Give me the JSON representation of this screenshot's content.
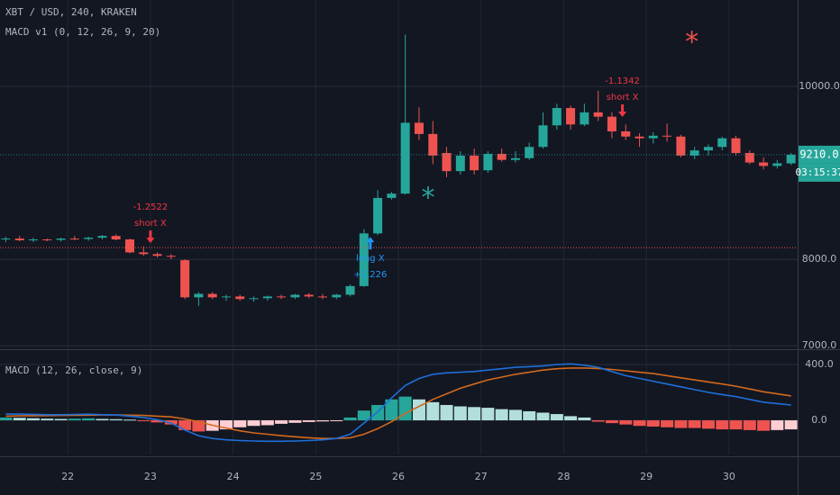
{
  "chart_data": [
    {
      "type": "candlestick",
      "title": "XBT / USD, 240, KRAKEN",
      "subtitle": "MACD v1 (0, 12, 26, 9, 20)",
      "x": [
        21.25,
        21.417,
        21.583,
        21.75,
        21.917,
        22.083,
        22.25,
        22.417,
        22.583,
        22.75,
        22.917,
        23.083,
        23.25,
        23.417,
        23.583,
        23.75,
        23.917,
        24.083,
        24.25,
        24.417,
        24.583,
        24.75,
        24.917,
        25.083,
        25.25,
        25.417,
        25.583,
        25.75,
        25.917,
        26.083,
        26.25,
        26.417,
        26.583,
        26.75,
        26.917,
        27.083,
        27.25,
        27.417,
        27.583,
        27.75,
        27.917,
        28.083,
        28.25,
        28.417,
        28.583,
        28.75,
        28.917,
        29.083,
        29.25,
        29.417,
        29.583,
        29.75,
        29.917,
        30.083,
        30.25,
        30.417,
        30.583,
        30.75
      ],
      "open": [
        8230,
        8240,
        8220,
        8230,
        8225,
        8240,
        8235,
        8250,
        8270,
        8230,
        8080,
        8060,
        8040,
        7990,
        7560,
        7600,
        7560,
        7570,
        7540,
        7550,
        7570,
        7560,
        7590,
        7570,
        7560,
        7590,
        7690,
        8300,
        8710,
        8760,
        9580,
        9450,
        9230,
        9020,
        9200,
        9030,
        9220,
        9150,
        9170,
        9300,
        9550,
        9750,
        9560,
        9700,
        9650,
        9480,
        9420,
        9400,
        9430,
        9420,
        9200,
        9260,
        9300,
        9400,
        9230,
        9120,
        9080,
        9110
      ],
      "high": [
        8260,
        8270,
        8250,
        8240,
        8250,
        8270,
        8260,
        8280,
        8290,
        8240,
        8150,
        8080,
        8060,
        8000,
        7620,
        7620,
        7590,
        7590,
        7570,
        7580,
        7590,
        7600,
        7610,
        7600,
        7600,
        7710,
        8350,
        8800,
        8780,
        10600,
        9760,
        9600,
        9300,
        9250,
        9280,
        9250,
        9280,
        9250,
        9350,
        9700,
        9800,
        9780,
        9800,
        9950,
        9700,
        9560,
        9460,
        9470,
        9570,
        9440,
        9300,
        9330,
        9420,
        9430,
        9260,
        9180,
        9150,
        9230
      ],
      "low": [
        8200,
        8210,
        8200,
        8210,
        8205,
        8220,
        8215,
        8230,
        8220,
        8070,
        8040,
        8020,
        8000,
        7540,
        7460,
        7540,
        7520,
        7520,
        7510,
        7520,
        7540,
        7540,
        7550,
        7540,
        7540,
        7570,
        7680,
        8280,
        8690,
        8750,
        9380,
        9100,
        8950,
        8980,
        8980,
        9000,
        9130,
        9120,
        9150,
        9280,
        9500,
        9500,
        9540,
        9600,
        9400,
        9380,
        9300,
        9340,
        9360,
        9180,
        9160,
        9200,
        9260,
        9200,
        9100,
        9040,
        9050,
        9090
      ],
      "close": [
        8240,
        8220,
        8230,
        8225,
        8240,
        8235,
        8250,
        8270,
        8230,
        8080,
        8060,
        8040,
        8030,
        7560,
        7600,
        7560,
        7570,
        7540,
        7550,
        7570,
        7560,
        7590,
        7570,
        7560,
        7590,
        7690,
        8300,
        8710,
        8760,
        9580,
        9450,
        9200,
        9020,
        9200,
        9030,
        9220,
        9150,
        9170,
        9300,
        9550,
        9750,
        9560,
        9700,
        9650,
        9480,
        9420,
        9400,
        9430,
        9420,
        9200,
        9260,
        9300,
        9400,
        9230,
        9120,
        9080,
        9110,
        9210
      ],
      "up_color": "#26a69a",
      "down_color": "#ef5350",
      "xlim": [
        21.18,
        30.83
      ],
      "xticks": [
        22,
        23,
        24,
        25,
        26,
        27,
        28,
        29,
        30
      ],
      "ylim": [
        6960,
        11000
      ],
      "yticks": [
        {
          "value": 10000,
          "label": "10000.0"
        },
        {
          "value": 8000,
          "label": "8000.0"
        },
        {
          "value": 7000,
          "label": "7000.0"
        }
      ],
      "grid": true,
      "last_price": {
        "value": 9210,
        "label": "9210.0"
      },
      "countdown": "03:15:37",
      "hline": {
        "value": 8135,
        "color": "#ef5350"
      },
      "annotations": [
        {
          "x": 23.0,
          "price": 8187,
          "direction": "down",
          "color": "#f23645",
          "lines": [
            "-1.2522",
            "short X"
          ]
        },
        {
          "x": 25.66,
          "price": 8260,
          "direction": "up",
          "color": "#2196f3",
          "lines": [
            "long X",
            "+1.226"
          ]
        },
        {
          "x": 28.71,
          "price": 9646,
          "direction": "down",
          "color": "#f23645",
          "lines": [
            "-1.1342",
            "short X"
          ]
        }
      ],
      "markers": [
        {
          "text": "*",
          "x": 26.36,
          "price": 8781,
          "color": "#26a69a"
        },
        {
          "text": "*",
          "x": 29.55,
          "price": 10583,
          "color": "#ef5350"
        }
      ]
    },
    {
      "type": "macd",
      "title": "MACD (12, 26, close, 9)",
      "x": [
        21.25,
        21.417,
        21.583,
        21.75,
        21.917,
        22.083,
        22.25,
        22.417,
        22.583,
        22.75,
        22.917,
        23.083,
        23.25,
        23.417,
        23.583,
        23.75,
        23.917,
        24.083,
        24.25,
        24.417,
        24.583,
        24.75,
        24.917,
        25.083,
        25.25,
        25.417,
        25.583,
        25.75,
        25.917,
        26.083,
        26.25,
        26.417,
        26.583,
        26.75,
        26.917,
        27.083,
        27.25,
        27.417,
        27.583,
        27.75,
        27.917,
        28.083,
        28.25,
        28.417,
        28.583,
        28.75,
        28.917,
        29.083,
        29.25,
        29.417,
        29.583,
        29.75,
        29.917,
        30.083,
        30.25,
        30.417,
        30.583,
        30.75
      ],
      "histogram": [
        20,
        18,
        15,
        12,
        10,
        12,
        14,
        10,
        8,
        5,
        -5,
        -15,
        -30,
        -70,
        -80,
        -75,
        -65,
        -50,
        -40,
        -35,
        -25,
        -18,
        -12,
        -8,
        -4,
        20,
        70,
        110,
        150,
        170,
        150,
        130,
        110,
        100,
        95,
        90,
        80,
        75,
        65,
        55,
        45,
        30,
        20,
        -10,
        -20,
        -30,
        -40,
        -45,
        -50,
        -55,
        -55,
        -60,
        -65,
        -65,
        -70,
        -75,
        -70,
        -65
      ],
      "histogram_colors": {
        "rising_above": "#26a69a",
        "falling_above": "#b2dfdb",
        "falling_below": "#ef5350",
        "rising_below": "#ffcdd2"
      },
      "macd": {
        "color": "#1e6fd9",
        "values": [
          45,
          45,
          43,
          40,
          40,
          42,
          44,
          40,
          38,
          30,
          20,
          5,
          -20,
          -70,
          -110,
          -130,
          -140,
          -145,
          -148,
          -150,
          -150,
          -148,
          -145,
          -140,
          -130,
          -100,
          -20,
          60,
          160,
          250,
          300,
          330,
          340,
          345,
          350,
          360,
          370,
          380,
          385,
          390,
          400,
          405,
          395,
          380,
          350,
          320,
          300,
          280,
          260,
          240,
          220,
          200,
          185,
          170,
          150,
          130,
          120,
          110
        ]
      },
      "signal": {
        "color": "#d2691e",
        "values": [
          30,
          32,
          33,
          34,
          35,
          36,
          37,
          38,
          38,
          37,
          35,
          30,
          25,
          10,
          -10,
          -35,
          -55,
          -75,
          -90,
          -100,
          -110,
          -118,
          -125,
          -130,
          -130,
          -125,
          -100,
          -60,
          -10,
          50,
          100,
          150,
          190,
          230,
          260,
          290,
          310,
          330,
          345,
          360,
          370,
          375,
          375,
          372,
          365,
          355,
          345,
          335,
          320,
          305,
          290,
          275,
          260,
          245,
          225,
          205,
          190,
          175
        ]
      },
      "xlim": [
        21.18,
        30.83
      ],
      "xticks": [
        22,
        23,
        24,
        25,
        26,
        27,
        28,
        29,
        30
      ],
      "ylim": [
        -245,
        497
      ],
      "yticks": [
        {
          "value": 400,
          "label": "400.0"
        },
        {
          "value": 0,
          "label": "0.0"
        }
      ],
      "grid": true
    }
  ]
}
